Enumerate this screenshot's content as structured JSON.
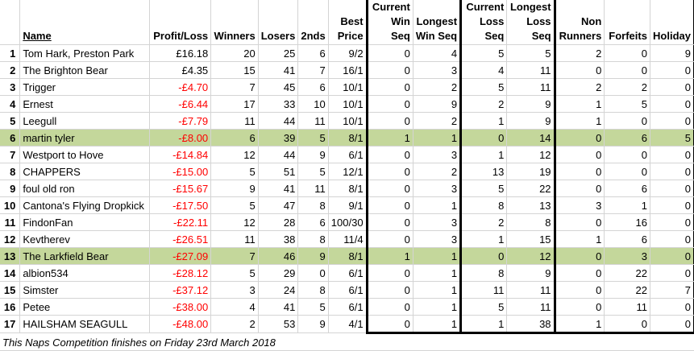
{
  "headers": {
    "name": "Name",
    "profit_loss": "Profit/Loss",
    "winners": "Winners",
    "losers": "Losers",
    "seconds": "2nds",
    "best_price": "Best Price",
    "current_win_seq": "Current Win Seq",
    "longest_win_seq": "Longest Win Seq",
    "current_loss_seq": "Current Loss Seq",
    "longest_loss_seq": "Longest Loss Seq",
    "non_runners": "Non Runners",
    "forfeits": "Forfeits",
    "holiday": "Holiday"
  },
  "rows": [
    {
      "pos": "1",
      "name": "Tom Hark, Preston Park",
      "pl": "£16.18",
      "neg": false,
      "w": "20",
      "l": "25",
      "s": "6",
      "bp": "9/2",
      "cws": "0",
      "lws": "4",
      "cls": "5",
      "lls": "5",
      "nr": "2",
      "f": "0",
      "h": "9",
      "hl": false
    },
    {
      "pos": "2",
      "name": "The Brighton Bear",
      "pl": "£4.35",
      "neg": false,
      "w": "15",
      "l": "41",
      "s": "7",
      "bp": "16/1",
      "cws": "0",
      "lws": "3",
      "cls": "4",
      "lls": "11",
      "nr": "0",
      "f": "0",
      "h": "0",
      "hl": false
    },
    {
      "pos": "3",
      "name": "Trigger",
      "pl": "-£4.70",
      "neg": true,
      "w": "7",
      "l": "45",
      "s": "6",
      "bp": "10/1",
      "cws": "0",
      "lws": "2",
      "cls": "5",
      "lls": "11",
      "nr": "2",
      "f": "2",
      "h": "0",
      "hl": false
    },
    {
      "pos": "4",
      "name": "Ernest",
      "pl": "-£6.44",
      "neg": true,
      "w": "17",
      "l": "33",
      "s": "10",
      "bp": "10/1",
      "cws": "0",
      "lws": "9",
      "cls": "2",
      "lls": "9",
      "nr": "1",
      "f": "5",
      "h": "0",
      "hl": false
    },
    {
      "pos": "5",
      "name": "Leegull",
      "pl": "-£7.79",
      "neg": true,
      "w": "11",
      "l": "44",
      "s": "11",
      "bp": "10/1",
      "cws": "0",
      "lws": "2",
      "cls": "1",
      "lls": "9",
      "nr": "1",
      "f": "0",
      "h": "0",
      "hl": false
    },
    {
      "pos": "6",
      "name": "martin tyler",
      "pl": "-£8.00",
      "neg": true,
      "w": "6",
      "l": "39",
      "s": "5",
      "bp": "8/1",
      "cws": "1",
      "lws": "1",
      "cls": "0",
      "lls": "14",
      "nr": "0",
      "f": "6",
      "h": "5",
      "hl": true
    },
    {
      "pos": "7",
      "name": "Westport to Hove",
      "pl": "-£14.84",
      "neg": true,
      "w": "12",
      "l": "44",
      "s": "9",
      "bp": "6/1",
      "cws": "0",
      "lws": "3",
      "cls": "1",
      "lls": "12",
      "nr": "0",
      "f": "0",
      "h": "0",
      "hl": false
    },
    {
      "pos": "8",
      "name": "CHAPPERS",
      "pl": "-£15.00",
      "neg": true,
      "w": "5",
      "l": "51",
      "s": "5",
      "bp": "12/1",
      "cws": "0",
      "lws": "2",
      "cls": "13",
      "lls": "19",
      "nr": "0",
      "f": "0",
      "h": "0",
      "hl": false
    },
    {
      "pos": "9",
      "name": "foul old ron",
      "pl": "-£15.67",
      "neg": true,
      "w": "9",
      "l": "41",
      "s": "11",
      "bp": "8/1",
      "cws": "0",
      "lws": "3",
      "cls": "5",
      "lls": "22",
      "nr": "0",
      "f": "6",
      "h": "0",
      "hl": false
    },
    {
      "pos": "10",
      "name": "Cantona's Flying Dropkick",
      "pl": "-£17.50",
      "neg": true,
      "w": "5",
      "l": "47",
      "s": "8",
      "bp": "9/1",
      "cws": "0",
      "lws": "1",
      "cls": "8",
      "lls": "13",
      "nr": "3",
      "f": "1",
      "h": "0",
      "hl": false
    },
    {
      "pos": "11",
      "name": "FindonFan",
      "pl": "-£22.11",
      "neg": true,
      "w": "12",
      "l": "28",
      "s": "6",
      "bp": "100/30",
      "cws": "0",
      "lws": "3",
      "cls": "2",
      "lls": "8",
      "nr": "0",
      "f": "16",
      "h": "0",
      "hl": false
    },
    {
      "pos": "12",
      "name": "Kevtherev",
      "pl": "-£26.51",
      "neg": true,
      "w": "11",
      "l": "38",
      "s": "8",
      "bp": "11/4",
      "cws": "0",
      "lws": "3",
      "cls": "1",
      "lls": "15",
      "nr": "1",
      "f": "6",
      "h": "0",
      "hl": false
    },
    {
      "pos": "13",
      "name": "The Larkfield Bear",
      "pl": "-£27.09",
      "neg": true,
      "w": "7",
      "l": "46",
      "s": "9",
      "bp": "8/1",
      "cws": "1",
      "lws": "1",
      "cls": "0",
      "lls": "12",
      "nr": "0",
      "f": "3",
      "h": "0",
      "hl": true
    },
    {
      "pos": "14",
      "name": "albion534",
      "pl": "-£28.12",
      "neg": true,
      "w": "5",
      "l": "29",
      "s": "0",
      "bp": "6/1",
      "cws": "0",
      "lws": "1",
      "cls": "8",
      "lls": "9",
      "nr": "0",
      "f": "22",
      "h": "0",
      "hl": false
    },
    {
      "pos": "15",
      "name": "Simster",
      "pl": "-£37.12",
      "neg": true,
      "w": "3",
      "l": "24",
      "s": "8",
      "bp": "6/1",
      "cws": "0",
      "lws": "1",
      "cls": "11",
      "lls": "11",
      "nr": "0",
      "f": "22",
      "h": "7",
      "hl": false
    },
    {
      "pos": "16",
      "name": "Petee",
      "pl": "-£38.00",
      "neg": true,
      "w": "4",
      "l": "41",
      "s": "5",
      "bp": "6/1",
      "cws": "0",
      "lws": "1",
      "cls": "5",
      "lls": "11",
      "nr": "0",
      "f": "11",
      "h": "0",
      "hl": false
    },
    {
      "pos": "17",
      "name": "HAILSHAM SEAGULL",
      "pl": "-£48.00",
      "neg": true,
      "w": "2",
      "l": "53",
      "s": "9",
      "bp": "4/1",
      "cws": "0",
      "lws": "1",
      "cls": "1",
      "lls": "38",
      "nr": "1",
      "f": "0",
      "h": "0",
      "hl": false
    }
  ],
  "footer": "This Naps Competition finishes on Friday 23rd March 2018",
  "colors": {
    "highlight": "#c4d79b",
    "negative": "#ff0000"
  }
}
